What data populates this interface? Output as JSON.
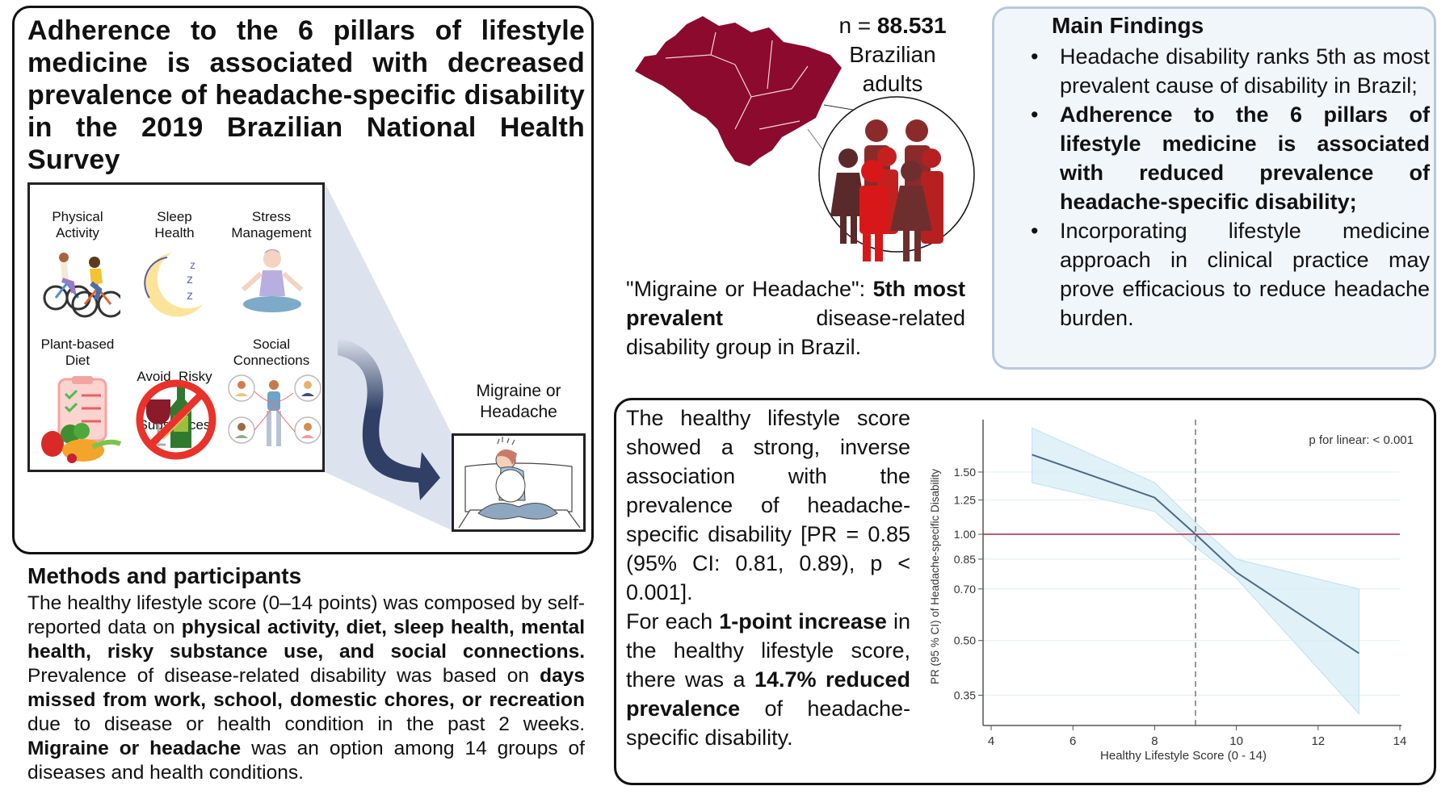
{
  "title": "Adherence to the 6 pillars of lifestyle medicine is associated with decreased prevalence of headache-specific disability in the 2019 Brazilian National Health Survey",
  "pillars": [
    {
      "label_line1": "Physical",
      "label_line2": "Activity",
      "icon": "cyclists-icon"
    },
    {
      "label_line1": "Sleep",
      "label_line2": "Health",
      "icon": "moon-sleep-icon"
    },
    {
      "label_line1": "Stress",
      "label_line2": "Management",
      "icon": "meditation-icon"
    },
    {
      "label_line1": "Plant-based",
      "label_line2": "Diet",
      "icon": "vegetables-checklist-icon"
    },
    {
      "label_line1": "Avoid  Risky",
      "label_line2": "Substances",
      "icon": "no-alcohol-tobacco-icon"
    },
    {
      "label_line1": "Social",
      "label_line2": "Connections",
      "icon": "social-network-icon"
    }
  ],
  "migraine": {
    "label_line1": "Migraine or",
    "label_line2": "Headache",
    "icon": "headache-person-icon"
  },
  "methods": {
    "title": "Methods and participants",
    "segments": [
      {
        "t": "The healthy lifestyle score (0–14 points) was composed by self-reported data on ",
        "b": false
      },
      {
        "t": "physical activity, diet, sleep health, mental health, risky substance use, and social connections.",
        "b": true
      },
      {
        "t": " Prevalence of disease-related disability was based on ",
        "b": false
      },
      {
        "t": "days missed from work, school, domestic chores, or recreation",
        "b": true
      },
      {
        "t": " due to disease or health condition in the past 2 weeks. ",
        "b": false
      },
      {
        "t": "Migraine or headache",
        "b": true
      },
      {
        "t": " was an option among 14 groups of diseases and health conditions.",
        "b": false
      }
    ]
  },
  "sample": {
    "prefix": "n = ",
    "n": "88.531",
    "line2": "Brazilian",
    "line3": "adults"
  },
  "ranking": {
    "segments": [
      {
        "t": "\"Migraine or Headache\": ",
        "b": false
      },
      {
        "t": "5th most prevalent",
        "b": true
      },
      {
        "t": " disease-related disability group in Brazil.",
        "b": false
      }
    ]
  },
  "findings": {
    "title": "Main Findings",
    "items": [
      {
        "t": "Headache disability ranks 5th as most prevalent cause of disability in Brazil;",
        "b": false
      },
      {
        "t": "Adherence to the 6 pillars of lifestyle medicine is associated with reduced prevalence of headache-specific disability;",
        "b": true
      },
      {
        "t": "Incorporating lifestyle medicine approach in clinical practice may prove efficacious to reduce headache burden.",
        "b": false
      }
    ]
  },
  "results": {
    "segments": [
      {
        "t": "The healthy lifestyle score showed a strong, inverse association with the prevalence of headache-specific disability [PR = 0.85 (95% CI: 0.81, 0.89), p < 0.001].",
        "b": false,
        "br": true
      },
      {
        "t": "For each ",
        "b": false
      },
      {
        "t": "1-point increase",
        "b": true
      },
      {
        "t": " in the healthy lifestyle score, there was a ",
        "b": false
      },
      {
        "t": "14.7% reduced prevalence",
        "b": true
      },
      {
        "t": " of headache-specific disability.",
        "b": false
      }
    ]
  },
  "colors": {
    "map": "#8b0a2e",
    "band": "#d6ecf6",
    "line": "#4a6a86",
    "reference": "#b0264a",
    "findings_bg": "#f1f6fb",
    "findings_border": "#b9c8dc",
    "arrow": "#2f3f66"
  },
  "chart_data": {
    "type": "line",
    "xlabel": "Healthy Lifestyle Score (0 - 14)",
    "ylabel": "PR (95 % CI) of Headache-specific Disability",
    "annotation": "p for linear: < 0.001",
    "xlim": [
      4,
      14
    ],
    "ylim": [
      0.29,
      2.1
    ],
    "yscale": "log",
    "xticks": [
      4,
      6,
      8,
      10,
      12,
      14
    ],
    "yticks": [
      0.35,
      0.5,
      0.7,
      0.85,
      1.0,
      1.25,
      1.5
    ],
    "ytick_labels": [
      "0.35",
      "0.50",
      "0.70",
      "0.85",
      "1.00",
      "1.25",
      "1.50"
    ],
    "reference_line": 1.0,
    "reference_x": 9,
    "grid": true,
    "series": [
      {
        "name": "PR",
        "x": [
          5,
          8,
          9,
          10,
          13
        ],
        "y": [
          1.68,
          1.27,
          1.0,
          0.78,
          0.46
        ],
        "lower": [
          1.4,
          1.16,
          0.92,
          0.75,
          0.31
        ],
        "upper": [
          2.0,
          1.4,
          1.08,
          0.85,
          0.7
        ]
      }
    ]
  }
}
